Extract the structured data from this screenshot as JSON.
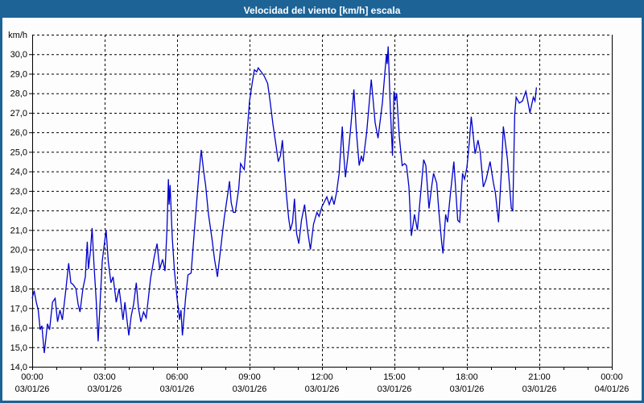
{
  "window": {
    "title": "Velocidad del viento [km/h] escala"
  },
  "colors": {
    "accent": "#1d6396",
    "title_text": "#ffffff",
    "line": "#0000cc",
    "grid": "#000000",
    "text": "#000000",
    "plot_bg": "#fdfdfd"
  },
  "chart_data": {
    "type": "line",
    "title": "Velocidad del viento [km/h] escala",
    "ylabel": "km/h",
    "y_unit_label": "km/h",
    "ylim": [
      14,
      31
    ],
    "y_tick_step": 1,
    "y_tick_values": [
      30,
      29,
      28,
      27,
      26,
      25,
      24,
      23,
      22,
      21,
      20,
      19,
      18,
      17,
      16,
      15,
      14
    ],
    "y_tick_labels": [
      "30,0",
      "29,0",
      "28,0",
      "27,0",
      "26,0",
      "25,0",
      "24,0",
      "23,0",
      "22,0",
      "21,0",
      "20,0",
      "19,0",
      "18,0",
      "17,0",
      "16,0",
      "15,0",
      "14,0"
    ],
    "x_hours_range": [
      0,
      24
    ],
    "x_minor_tick_every_hours": 1,
    "grid": "dashed",
    "legend": "none",
    "x_major_ticks": [
      {
        "hour": 0,
        "time": "00:00",
        "date": "03/01/26"
      },
      {
        "hour": 3,
        "time": "03:00",
        "date": "03/01/26"
      },
      {
        "hour": 6,
        "time": "06:00",
        "date": "03/01/26"
      },
      {
        "hour": 9,
        "time": "09:00",
        "date": "03/01/26"
      },
      {
        "hour": 12,
        "time": "12:00",
        "date": "03/01/26"
      },
      {
        "hour": 15,
        "time": "15:00",
        "date": "03/01/26"
      },
      {
        "hour": 18,
        "time": "18:00",
        "date": "03/01/26"
      },
      {
        "hour": 21,
        "time": "21:00",
        "date": "03/01/26"
      },
      {
        "hour": 24,
        "time": "00:00",
        "date": "04/01/26"
      }
    ],
    "series": [
      {
        "name": "Velocidad del viento [km/h]",
        "color": "#0000cc",
        "points": [
          [
            0.0,
            17.5
          ],
          [
            0.08,
            17.9
          ],
          [
            0.17,
            17.3
          ],
          [
            0.25,
            16.9
          ],
          [
            0.33,
            15.9
          ],
          [
            0.4,
            16.1
          ],
          [
            0.5,
            14.7
          ],
          [
            0.58,
            15.6
          ],
          [
            0.63,
            16.2
          ],
          [
            0.72,
            15.9
          ],
          [
            0.84,
            17.3
          ],
          [
            0.95,
            17.5
          ],
          [
            1.05,
            16.3
          ],
          [
            1.15,
            16.9
          ],
          [
            1.25,
            16.4
          ],
          [
            1.38,
            17.8
          ],
          [
            1.51,
            19.3
          ],
          [
            1.6,
            18.3
          ],
          [
            1.7,
            18.2
          ],
          [
            1.81,
            18.0
          ],
          [
            1.9,
            17.2
          ],
          [
            1.98,
            16.8
          ],
          [
            2.1,
            18.0
          ],
          [
            2.2,
            18.6
          ],
          [
            2.28,
            20.4
          ],
          [
            2.33,
            19.0
          ],
          [
            2.41,
            19.9
          ],
          [
            2.48,
            21.1
          ],
          [
            2.56,
            19.2
          ],
          [
            2.65,
            17.4
          ],
          [
            2.73,
            15.3
          ],
          [
            2.9,
            19.4
          ],
          [
            3.02,
            20.6
          ],
          [
            3.06,
            21.0
          ],
          [
            3.15,
            19.4
          ],
          [
            3.26,
            18.3
          ],
          [
            3.35,
            18.6
          ],
          [
            3.48,
            17.3
          ],
          [
            3.6,
            18.0
          ],
          [
            3.76,
            16.4
          ],
          [
            3.84,
            17.3
          ],
          [
            4.0,
            15.6
          ],
          [
            4.1,
            16.6
          ],
          [
            4.2,
            17.2
          ],
          [
            4.31,
            18.3
          ],
          [
            4.4,
            17.0
          ],
          [
            4.5,
            16.3
          ],
          [
            4.61,
            16.8
          ],
          [
            4.72,
            16.5
          ],
          [
            4.9,
            18.5
          ],
          [
            5.05,
            19.6
          ],
          [
            5.17,
            20.3
          ],
          [
            5.28,
            19.0
          ],
          [
            5.4,
            19.5
          ],
          [
            5.5,
            18.9
          ],
          [
            5.58,
            21.0
          ],
          [
            5.64,
            23.6
          ],
          [
            5.67,
            22.3
          ],
          [
            5.71,
            23.3
          ],
          [
            5.8,
            20.6
          ],
          [
            5.89,
            18.9
          ],
          [
            6.0,
            17.5
          ],
          [
            6.06,
            16.9
          ],
          [
            6.1,
            16.4
          ],
          [
            6.16,
            16.9
          ],
          [
            6.22,
            15.6
          ],
          [
            6.35,
            17.5
          ],
          [
            6.45,
            18.7
          ],
          [
            6.58,
            18.8
          ],
          [
            6.75,
            21.5
          ],
          [
            6.9,
            23.8
          ],
          [
            7.0,
            25.1
          ],
          [
            7.1,
            24.0
          ],
          [
            7.18,
            23.3
          ],
          [
            7.3,
            21.8
          ],
          [
            7.45,
            20.5
          ],
          [
            7.55,
            19.5
          ],
          [
            7.67,
            18.6
          ],
          [
            7.8,
            20.0
          ],
          [
            7.95,
            21.6
          ],
          [
            8.08,
            22.7
          ],
          [
            8.17,
            23.5
          ],
          [
            8.24,
            22.4
          ],
          [
            8.33,
            21.9
          ],
          [
            8.41,
            21.9
          ],
          [
            8.55,
            23.1
          ],
          [
            8.63,
            24.4
          ],
          [
            8.72,
            24.2
          ],
          [
            8.78,
            24.1
          ],
          [
            8.9,
            26.0
          ],
          [
            9.0,
            27.6
          ],
          [
            9.12,
            28.6
          ],
          [
            9.2,
            29.2
          ],
          [
            9.3,
            29.1
          ],
          [
            9.36,
            29.3
          ],
          [
            9.48,
            29.1
          ],
          [
            9.6,
            28.9
          ],
          [
            9.75,
            28.5
          ],
          [
            9.85,
            27.6
          ],
          [
            9.97,
            26.4
          ],
          [
            10.1,
            25.3
          ],
          [
            10.19,
            24.5
          ],
          [
            10.28,
            24.8
          ],
          [
            10.36,
            25.6
          ],
          [
            10.45,
            24.0
          ],
          [
            10.52,
            22.9
          ],
          [
            10.62,
            21.6
          ],
          [
            10.69,
            21.0
          ],
          [
            10.78,
            21.4
          ],
          [
            10.86,
            22.6
          ],
          [
            10.95,
            20.8
          ],
          [
            11.04,
            20.3
          ],
          [
            11.15,
            21.5
          ],
          [
            11.28,
            22.3
          ],
          [
            11.4,
            21.0
          ],
          [
            11.52,
            20.0
          ],
          [
            11.65,
            21.3
          ],
          [
            11.79,
            21.9
          ],
          [
            11.88,
            21.7
          ],
          [
            12.0,
            22.2
          ],
          [
            12.12,
            22.5
          ],
          [
            12.2,
            22.7
          ],
          [
            12.3,
            22.3
          ],
          [
            12.41,
            22.7
          ],
          [
            12.5,
            22.3
          ],
          [
            12.6,
            22.9
          ],
          [
            12.71,
            23.9
          ],
          [
            12.84,
            26.3
          ],
          [
            12.9,
            24.9
          ],
          [
            12.97,
            23.7
          ],
          [
            13.1,
            25.1
          ],
          [
            13.2,
            26.4
          ],
          [
            13.32,
            28.2
          ],
          [
            13.42,
            26.1
          ],
          [
            13.54,
            24.3
          ],
          [
            13.63,
            24.8
          ],
          [
            13.7,
            24.5
          ],
          [
            13.85,
            26.0
          ],
          [
            14.04,
            28.7
          ],
          [
            14.2,
            26.5
          ],
          [
            14.32,
            25.7
          ],
          [
            14.5,
            27.5
          ],
          [
            14.6,
            29.0
          ],
          [
            14.67,
            30.0
          ],
          [
            14.7,
            29.5
          ],
          [
            14.74,
            30.4
          ],
          [
            14.83,
            27.2
          ],
          [
            14.92,
            24.8
          ],
          [
            14.98,
            28.1
          ],
          [
            15.03,
            27.6
          ],
          [
            15.09,
            28.0
          ],
          [
            15.2,
            25.8
          ],
          [
            15.32,
            24.3
          ],
          [
            15.42,
            24.4
          ],
          [
            15.5,
            24.3
          ],
          [
            15.6,
            23.2
          ],
          [
            15.7,
            20.7
          ],
          [
            15.83,
            21.8
          ],
          [
            15.95,
            21.0
          ],
          [
            16.08,
            22.8
          ],
          [
            16.21,
            24.6
          ],
          [
            16.3,
            24.3
          ],
          [
            16.43,
            22.1
          ],
          [
            16.55,
            23.3
          ],
          [
            16.62,
            23.9
          ],
          [
            16.75,
            23.4
          ],
          [
            16.85,
            21.8
          ],
          [
            16.96,
            20.3
          ],
          [
            17.01,
            19.8
          ],
          [
            17.12,
            21.8
          ],
          [
            17.2,
            21.4
          ],
          [
            17.33,
            23.0
          ],
          [
            17.46,
            24.5
          ],
          [
            17.62,
            21.5
          ],
          [
            17.7,
            21.4
          ],
          [
            17.82,
            23.9
          ],
          [
            17.9,
            23.6
          ],
          [
            18.0,
            24.2
          ],
          [
            18.1,
            25.5
          ],
          [
            18.18,
            26.8
          ],
          [
            18.34,
            24.9
          ],
          [
            18.46,
            25.6
          ],
          [
            18.55,
            25.0
          ],
          [
            18.68,
            23.2
          ],
          [
            18.8,
            23.6
          ],
          [
            18.96,
            24.5
          ],
          [
            19.1,
            23.4
          ],
          [
            19.18,
            22.9
          ],
          [
            19.31,
            21.4
          ],
          [
            19.42,
            23.8
          ],
          [
            19.51,
            26.3
          ],
          [
            19.6,
            25.4
          ],
          [
            19.68,
            24.6
          ],
          [
            19.84,
            22.1
          ],
          [
            19.9,
            22.0
          ],
          [
            19.98,
            26.9
          ],
          [
            20.04,
            27.8
          ],
          [
            20.17,
            27.5
          ],
          [
            20.3,
            27.6
          ],
          [
            20.44,
            28.1
          ],
          [
            20.52,
            27.6
          ],
          [
            20.61,
            27.0
          ],
          [
            20.75,
            27.8
          ],
          [
            20.82,
            27.6
          ],
          [
            20.88,
            28.3
          ]
        ]
      }
    ]
  }
}
